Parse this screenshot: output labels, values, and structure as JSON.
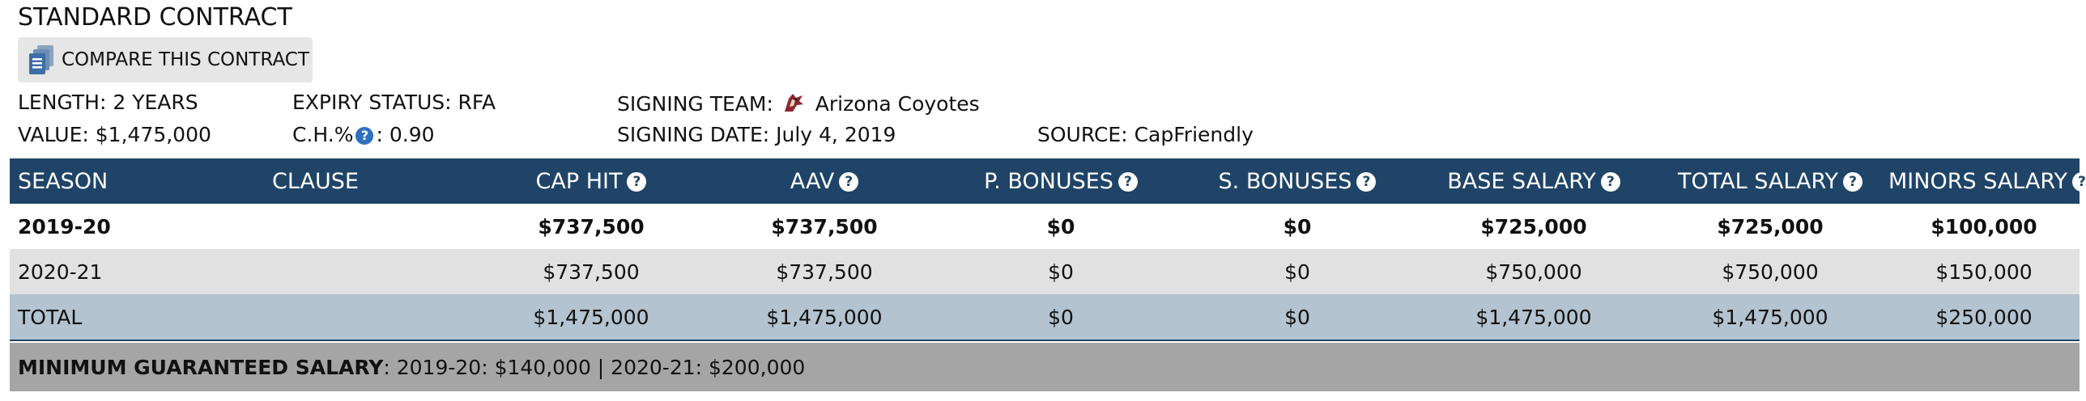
{
  "title": "STANDARD CONTRACT",
  "compare_label": "COMPARE THIS CONTRACT",
  "info": {
    "length": "LENGTH: 2 YEARS",
    "expiry": "EXPIRY STATUS: RFA",
    "signing_team_label": "SIGNING TEAM:",
    "signing_team": "Arizona Coyotes",
    "value": "VALUE: $1,475,000",
    "ch_label": "C.H.%",
    "ch_value": ": 0.90",
    "signing_date": "SIGNING DATE: July 4, 2019",
    "source": "SOURCE: CapFriendly"
  },
  "table": {
    "headers": [
      "SEASON",
      "CLAUSE",
      "CAP HIT",
      "AAV",
      "P. BONUSES",
      "S. BONUSES",
      "BASE SALARY",
      "TOTAL SALARY",
      "MINORS SALARY"
    ],
    "rows": [
      [
        "2019-20",
        "",
        "$737,500",
        "$737,500",
        "$0",
        "$0",
        "$725,000",
        "$725,000",
        "$100,000"
      ],
      [
        "2020-21",
        "",
        "$737,500",
        "$737,500",
        "$0",
        "$0",
        "$750,000",
        "$750,000",
        "$150,000"
      ],
      [
        "TOTAL",
        "",
        "$1,475,000",
        "$1,475,000",
        "$0",
        "$0",
        "$1,475,000",
        "$1,475,000",
        "$250,000"
      ]
    ]
  },
  "mgs": {
    "label": "MINIMUM GUARANTEED SALARY",
    "value": ": 2019-20: $140,000 | 2020-21: $200,000"
  },
  "colors": {
    "header_bg": "#1f4468",
    "row_alt_bg": "#e1e1e1",
    "total_row_bg": "#b3c3cf",
    "footer_bg": "#a5a5a5",
    "help_icon": "#2f6fbf"
  },
  "icons": {
    "compare": "documents-icon",
    "team": "coyotes-logo-icon",
    "help": "question-icon"
  }
}
